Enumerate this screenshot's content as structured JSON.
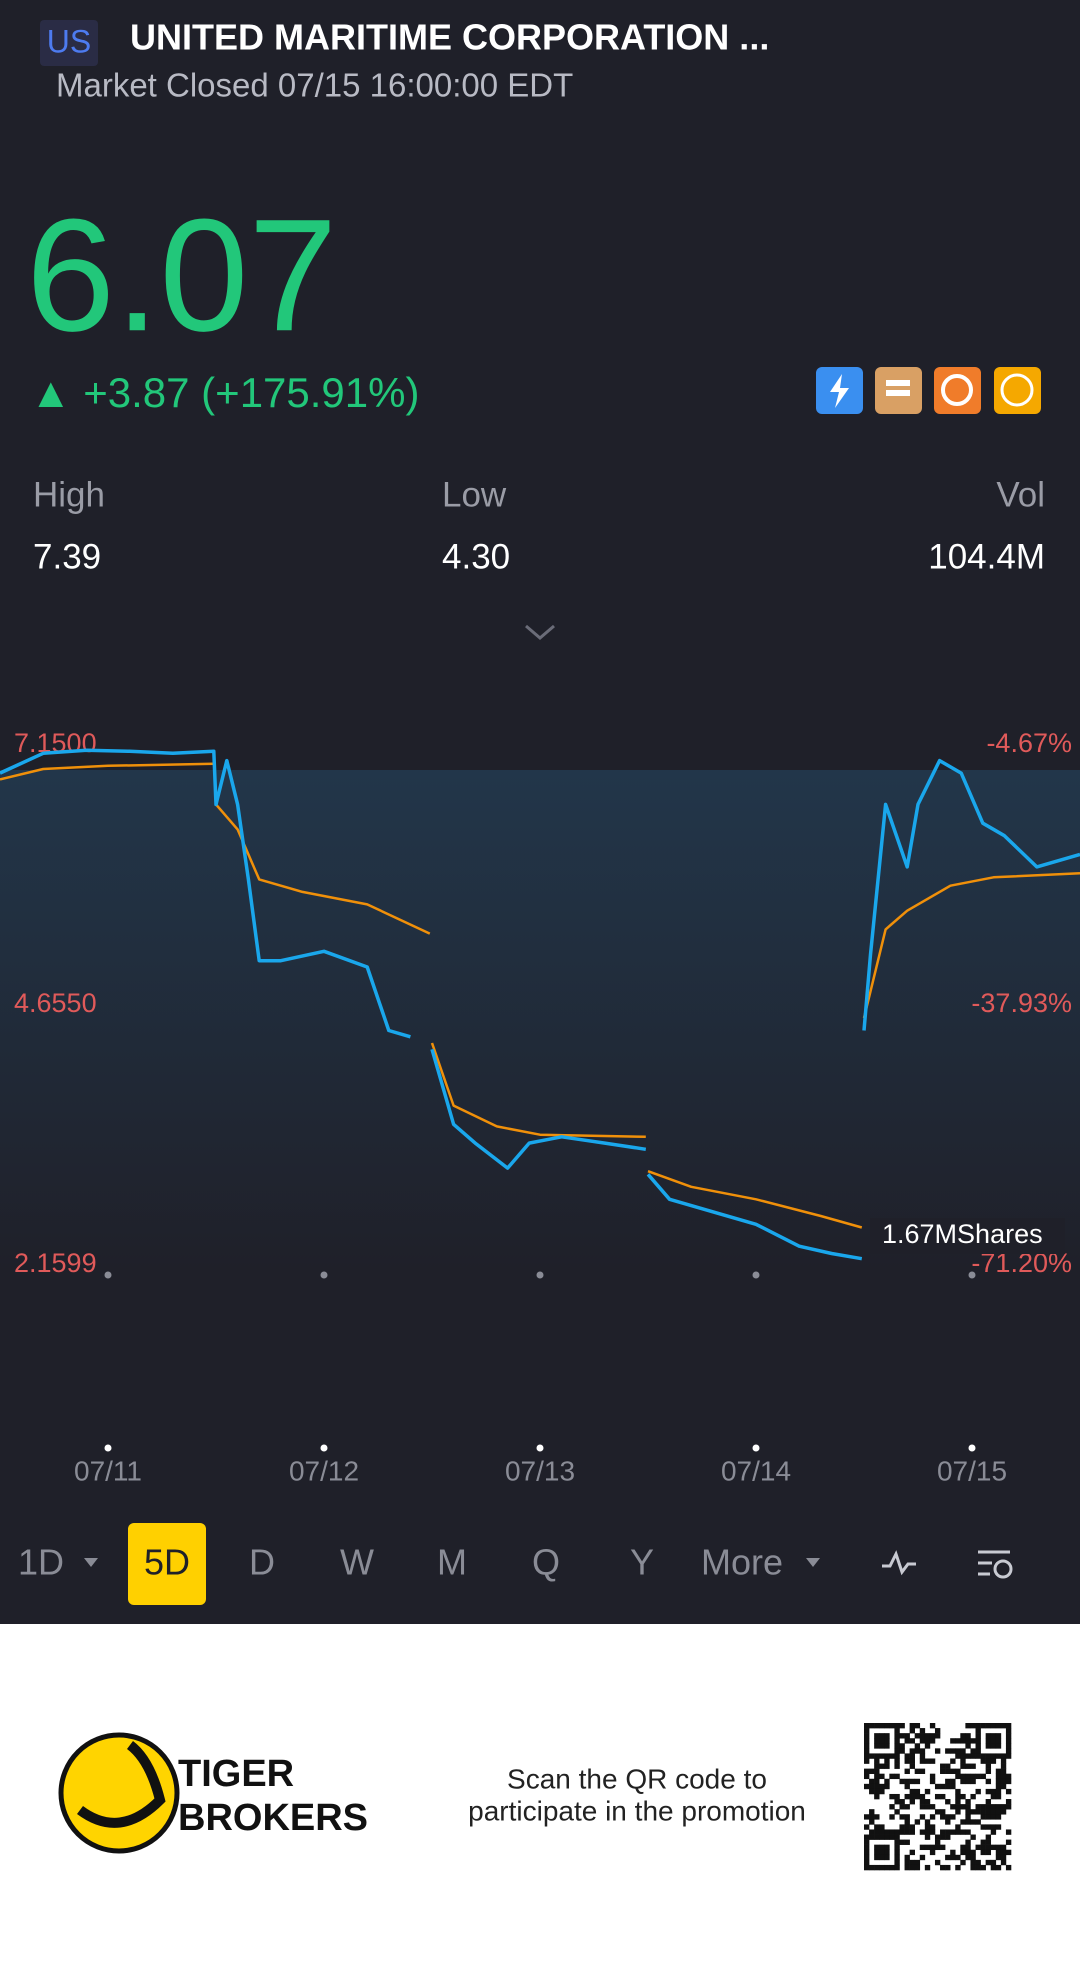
{
  "header": {
    "market": "US",
    "name": "UNITED MARITIME CORPORATION ...",
    "status": "Market Closed 07/15 16:00:00 EDT"
  },
  "quote": {
    "price": "6.07",
    "change": "▲ +3.87 (+175.91%)"
  },
  "stats": [
    {
      "label": "High",
      "value": "7.39"
    },
    {
      "label": "Low",
      "value": "4.30"
    },
    {
      "label": "Vol",
      "value": "104.4M"
    }
  ],
  "chart_data": {
    "type": "line",
    "xlim": [
      0,
      5
    ],
    "xticks": [
      {
        "value": 0.5,
        "label": "07/11"
      },
      {
        "value": 1.5,
        "label": "07/12"
      },
      {
        "value": 2.5,
        "label": "07/13"
      },
      {
        "value": 3.5,
        "label": "07/14"
      },
      {
        "value": 4.5,
        "label": "07/15"
      }
    ],
    "ylim": [
      2.1599,
      7.15
    ],
    "yticks": [
      {
        "value": 7.15,
        "label": "7.1500"
      },
      {
        "value": 4.655,
        "label": "4.6550"
      },
      2.1599
    ],
    "y2lim": [
      -71.2,
      -4.67
    ],
    "y2ticks": [
      {
        "value": -4.67,
        "label": "-4.67%"
      },
      {
        "value": -37.93,
        "label": "-37.93%"
      },
      {
        "value": -71.2,
        "label": "-71.20%"
      }
    ],
    "volume_label": "1.67MShares",
    "series": [
      {
        "color": "#1aa7ec",
        "x": [
          0,
          0.2,
          0.4,
          0.6,
          0.8,
          0.99,
          1.0,
          1.05,
          1.1,
          1.15,
          1.2,
          1.3,
          1.5,
          1.7,
          1.8,
          1.9,
          null,
          2.0,
          2.1,
          2.2,
          2.35,
          2.45,
          2.6,
          2.8,
          2.99,
          null,
          3.0,
          3.1,
          3.3,
          3.5,
          3.7,
          3.85,
          3.99,
          null,
          4.0,
          4.03,
          4.1,
          4.2,
          4.25,
          4.35,
          4.45,
          4.55,
          4.65,
          4.8,
          4.9,
          5.0
        ],
        "values": [
          6.88,
          7.07,
          7.1,
          7.09,
          7.07,
          7.09,
          6.58,
          7.0,
          6.58,
          5.86,
          5.08,
          5.08,
          5.17,
          5.02,
          4.41,
          4.35,
          null,
          4.23,
          3.51,
          3.33,
          3.09,
          3.33,
          3.39,
          3.33,
          3.27,
          null,
          3.03,
          2.79,
          2.67,
          2.55,
          2.34,
          2.27,
          2.22,
          null,
          4.41,
          5.14,
          6.58,
          5.98,
          6.58,
          7.0,
          6.88,
          6.4,
          6.28,
          5.98,
          6.04,
          6.1
        ]
      },
      {
        "color": "#f0900a",
        "x": [
          0,
          0.2,
          0.5,
          0.99,
          null,
          1.0,
          1.1,
          1.2,
          1.4,
          1.7,
          1.99,
          null,
          2.0,
          2.1,
          2.3,
          2.5,
          2.99,
          null,
          3.0,
          3.2,
          3.5,
          3.8,
          3.99,
          null,
          4.0,
          4.1,
          4.2,
          4.4,
          4.6,
          5.0
        ],
        "values": [
          6.82,
          6.92,
          6.95,
          6.97,
          null,
          6.58,
          6.34,
          5.86,
          5.74,
          5.62,
          5.34,
          null,
          4.29,
          3.69,
          3.49,
          3.41,
          3.39,
          null,
          3.06,
          2.91,
          2.79,
          2.63,
          2.52,
          null,
          4.53,
          5.38,
          5.56,
          5.8,
          5.88,
          5.92
        ]
      }
    ]
  },
  "periods": [
    "1D",
    "5D",
    "D",
    "W",
    "M",
    "Q",
    "Y",
    "More"
  ],
  "footer": {
    "brand_line1": "TIGER",
    "brand_line2": "BROKERS",
    "promo_line1": "Scan the QR code to",
    "promo_line2": "participate in the promotion"
  }
}
